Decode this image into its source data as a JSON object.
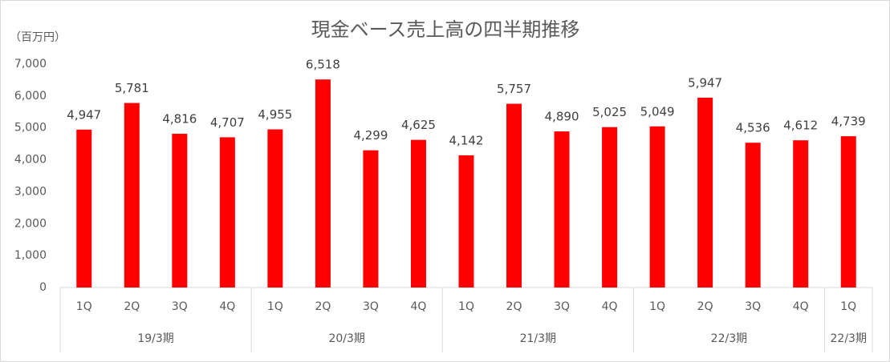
{
  "chart_data": {
    "type": "bar",
    "title": "現金ベース売上高の四半期推移",
    "y_label": "（百万円）",
    "color": "#ff0000",
    "grid": false,
    "ylim": [
      0,
      7000
    ],
    "yticks": [
      0,
      {
        "value": 1000,
        "label": "1,000"
      },
      {
        "value": 2000,
        "label": "2,000"
      },
      {
        "value": 3000,
        "label": "3,000"
      },
      {
        "value": 4000,
        "label": "4,000"
      },
      {
        "value": 5000,
        "label": "5,000"
      },
      {
        "value": 6000,
        "label": "6,000"
      },
      {
        "value": 7000,
        "label": "7,000"
      }
    ],
    "groups": [
      {
        "name": "19/3期",
        "categories": [
          "1Q",
          "2Q",
          "3Q",
          "4Q"
        ],
        "values": [
          4947,
          5781,
          4816,
          4707
        ],
        "value_labels": [
          "4,947",
          "5,781",
          "4,816",
          "4,707"
        ]
      },
      {
        "name": "20/3期",
        "categories": [
          "1Q",
          "2Q",
          "3Q",
          "4Q"
        ],
        "values": [
          4955,
          6518,
          4299,
          4625
        ],
        "value_labels": [
          "4,955",
          "6,518",
          "4,299",
          "4,625"
        ]
      },
      {
        "name": "21/3期",
        "categories": [
          "1Q",
          "2Q",
          "3Q",
          "4Q"
        ],
        "values": [
          4142,
          5757,
          4890,
          5025
        ],
        "value_labels": [
          "4,142",
          "5,757",
          "4,890",
          "5,025"
        ]
      },
      {
        "name": "22/3期",
        "categories": [
          "1Q",
          "2Q",
          "3Q",
          "4Q"
        ],
        "values": [
          5049,
          5947,
          4536,
          4612
        ],
        "value_labels": [
          "5,049",
          "5,947",
          "4,536",
          "4,612"
        ]
      },
      {
        "name": "22/3期",
        "categories": [
          "1Q"
        ],
        "values": [
          4739
        ],
        "value_labels": [
          "4,739"
        ]
      }
    ]
  }
}
